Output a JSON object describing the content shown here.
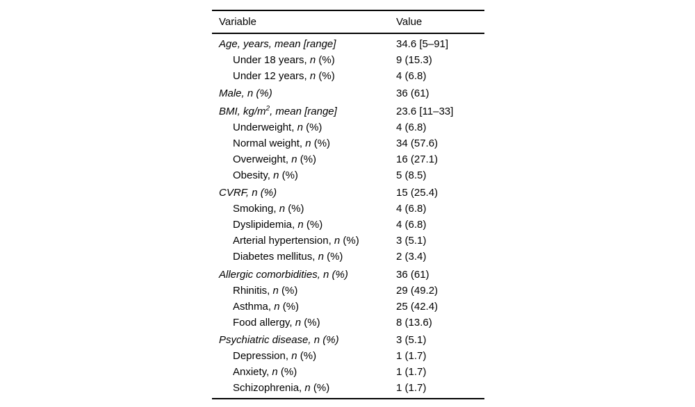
{
  "table": {
    "columns": [
      "Variable",
      "Value"
    ],
    "rows": [
      {
        "group": true,
        "indent": false,
        "segments": [
          [
            "i",
            "Age, years, mean [range]"
          ]
        ],
        "value": "34.6 [5–91]"
      },
      {
        "group": false,
        "indent": true,
        "segments": [
          [
            "",
            "Under 18 years, "
          ],
          [
            "i",
            "n"
          ],
          [
            "",
            " (%)"
          ]
        ],
        "value": "9 (15.3)"
      },
      {
        "group": false,
        "indent": true,
        "segments": [
          [
            "",
            "Under 12 years, "
          ],
          [
            "i",
            "n"
          ],
          [
            "",
            " (%)"
          ]
        ],
        "value": "4 (6.8)"
      },
      {
        "group": true,
        "indent": false,
        "segments": [
          [
            "i",
            "Male, n (%)"
          ]
        ],
        "value": "36 (61)"
      },
      {
        "group": true,
        "indent": false,
        "segments": [
          [
            "i",
            "BMI, kg/m"
          ],
          [
            "sup-i",
            "2"
          ],
          [
            "i",
            ", mean [range]"
          ]
        ],
        "value": "23.6 [11–33]"
      },
      {
        "group": false,
        "indent": true,
        "segments": [
          [
            "",
            "Underweight, "
          ],
          [
            "i",
            "n"
          ],
          [
            "",
            " (%)"
          ]
        ],
        "value": "4 (6.8)"
      },
      {
        "group": false,
        "indent": true,
        "segments": [
          [
            "",
            "Normal weight, "
          ],
          [
            "i",
            "n"
          ],
          [
            "",
            " (%)"
          ]
        ],
        "value": "34 (57.6)"
      },
      {
        "group": false,
        "indent": true,
        "segments": [
          [
            "",
            "Overweight, "
          ],
          [
            "i",
            "n"
          ],
          [
            "",
            " (%)"
          ]
        ],
        "value": "16 (27.1)"
      },
      {
        "group": false,
        "indent": true,
        "segments": [
          [
            "",
            "Obesity, "
          ],
          [
            "i",
            "n"
          ],
          [
            "",
            " (%)"
          ]
        ],
        "value": "5 (8.5)"
      },
      {
        "group": true,
        "indent": false,
        "segments": [
          [
            "i",
            "CVRF, n (%)"
          ]
        ],
        "value": "15 (25.4)"
      },
      {
        "group": false,
        "indent": true,
        "segments": [
          [
            "",
            "Smoking, "
          ],
          [
            "i",
            "n"
          ],
          [
            "",
            " (%)"
          ]
        ],
        "value": "4 (6.8)"
      },
      {
        "group": false,
        "indent": true,
        "segments": [
          [
            "",
            "Dyslipidemia, "
          ],
          [
            "i",
            "n"
          ],
          [
            "",
            " (%)"
          ]
        ],
        "value": "4 (6.8)"
      },
      {
        "group": false,
        "indent": true,
        "segments": [
          [
            "",
            "Arterial hypertension, "
          ],
          [
            "i",
            "n"
          ],
          [
            "",
            " (%)"
          ]
        ],
        "value": "3 (5.1)"
      },
      {
        "group": false,
        "indent": true,
        "segments": [
          [
            "",
            "Diabetes mellitus, "
          ],
          [
            "i",
            "n"
          ],
          [
            "",
            " (%)"
          ]
        ],
        "value": "2 (3.4)"
      },
      {
        "group": true,
        "indent": false,
        "segments": [
          [
            "i",
            "Allergic comorbidities, n (%)"
          ]
        ],
        "value": "36 (61)"
      },
      {
        "group": false,
        "indent": true,
        "segments": [
          [
            "",
            "Rhinitis, "
          ],
          [
            "i",
            "n"
          ],
          [
            "",
            " (%)"
          ]
        ],
        "value": "29 (49.2)"
      },
      {
        "group": false,
        "indent": true,
        "segments": [
          [
            "",
            "Asthma, "
          ],
          [
            "i",
            "n"
          ],
          [
            "",
            " (%)"
          ]
        ],
        "value": "25 (42.4)"
      },
      {
        "group": false,
        "indent": true,
        "segments": [
          [
            "",
            "Food allergy, "
          ],
          [
            "i",
            "n"
          ],
          [
            "",
            " (%)"
          ]
        ],
        "value": "8 (13.6)"
      },
      {
        "group": true,
        "indent": false,
        "segments": [
          [
            "i",
            "Psychiatric disease, n (%)"
          ]
        ],
        "value": "3 (5.1)"
      },
      {
        "group": false,
        "indent": true,
        "segments": [
          [
            "",
            "Depression, "
          ],
          [
            "i",
            "n"
          ],
          [
            "",
            " (%)"
          ]
        ],
        "value": "1 (1.7)"
      },
      {
        "group": false,
        "indent": true,
        "segments": [
          [
            "",
            "Anxiety, "
          ],
          [
            "i",
            "n"
          ],
          [
            "",
            " (%)"
          ]
        ],
        "value": "1 (1.7)"
      },
      {
        "group": false,
        "indent": true,
        "segments": [
          [
            "",
            "Schizophrenia, "
          ],
          [
            "i",
            "n"
          ],
          [
            "",
            " (%)"
          ]
        ],
        "value": "1 (1.7)"
      }
    ]
  },
  "colors": {
    "text": "#000000",
    "background": "#ffffff",
    "rule": "#000000"
  }
}
